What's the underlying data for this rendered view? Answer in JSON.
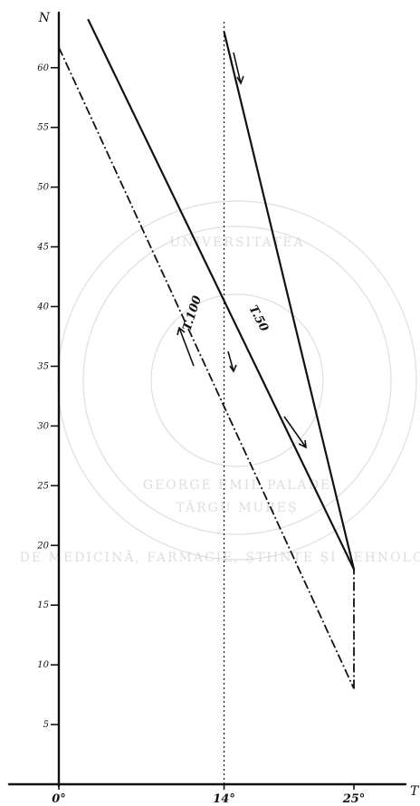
{
  "chart_data": {
    "type": "line",
    "title": "",
    "xlabel": "T",
    "ylabel": "N",
    "xlim": [
      0,
      25
    ],
    "ylim": [
      0,
      64
    ],
    "x_tick_values": [
      0,
      14,
      25
    ],
    "x_tick_labels": [
      "0°",
      "14°",
      "25°"
    ],
    "y_tick_values": [
      5,
      10,
      15,
      20,
      25,
      30,
      35,
      40,
      45,
      50,
      55,
      60
    ],
    "y_tick_labels": [
      "5",
      "10",
      "15",
      "20",
      "25",
      "30",
      "35",
      "40",
      "45",
      "50",
      "55",
      "60"
    ],
    "grid": false,
    "legend": "none",
    "series": [
      {
        "name": "T.50",
        "style": "solid",
        "points": [
          [
            2.5,
            64
          ],
          [
            25,
            18
          ]
        ]
      },
      {
        "name": "",
        "style": "solid",
        "points": [
          [
            14,
            63
          ],
          [
            25,
            18
          ]
        ]
      },
      {
        "name": "T.100",
        "style": "dash-dot",
        "points": [
          [
            0,
            61.7
          ],
          [
            25,
            8
          ]
        ]
      }
    ],
    "reference_lines": [
      {
        "style": "dotted",
        "x": 14
      },
      {
        "style": "dash-dot",
        "x": 25,
        "from": 8,
        "to": 18
      }
    ]
  },
  "watermark": {
    "lines": [
      "UNIVERSITATEA",
      "DE MEDICINĂ, FARMACIE, ȘTIINȚE ȘI TEHNOLOGIE",
      "GEORGE EMIL PALADE",
      "TÂRGU MUREȘ"
    ]
  }
}
